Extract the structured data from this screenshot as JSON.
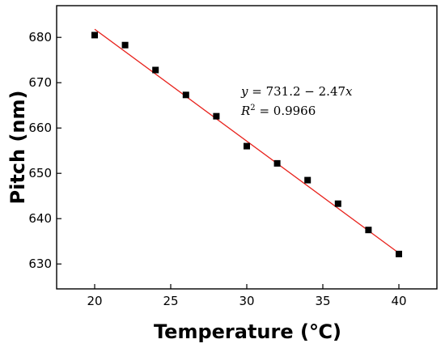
{
  "chart_data": {
    "type": "scatter",
    "title": "",
    "xlabel": "Temperature (℃)",
    "ylabel": "Pitch (nm)",
    "xlim": [
      17.5,
      42.5
    ],
    "ylim": [
      624.5,
      687
    ],
    "xticks": [
      "20",
      "25",
      "30",
      "35",
      "40"
    ],
    "yticks": [
      "630",
      "640",
      "650",
      "660",
      "670",
      "680"
    ],
    "grid": false,
    "series": [
      {
        "marker": "square",
        "color": "#000000",
        "x": [
          20,
          22,
          24,
          26,
          28,
          30,
          32,
          34,
          36,
          38,
          40
        ],
        "y": [
          680.5,
          678.3,
          672.8,
          667.3,
          662.6,
          656.0,
          652.2,
          648.5,
          643.3,
          637.5,
          632.2
        ]
      }
    ],
    "fit": {
      "color": "#e8221c",
      "intercept": 731.2,
      "slope": -2.47,
      "x_range": [
        20,
        40
      ]
    },
    "annotation": {
      "equation": "y = 731.2 − 2.47x",
      "r_squared": "R² = 0.9966"
    }
  }
}
